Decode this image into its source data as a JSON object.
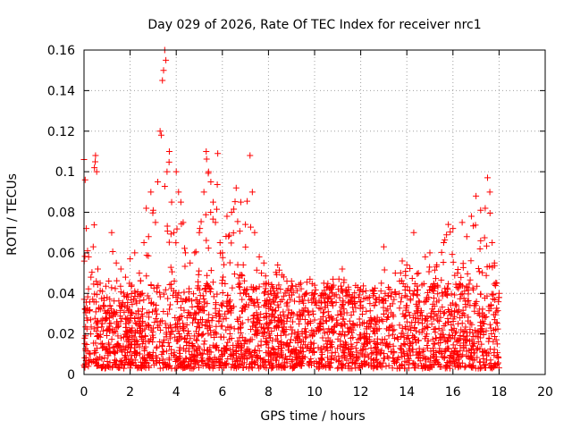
{
  "chart_data": {
    "type": "scatter",
    "title": "Day 029 of 2026, Rate Of TEC Index for receiver nrc1",
    "xlabel": "GPS time / hours",
    "ylabel": "ROTI / TECUs",
    "xlim": [
      0,
      20
    ],
    "ylim": [
      0,
      0.16
    ],
    "xticks": [
      0,
      2,
      4,
      6,
      8,
      10,
      12,
      14,
      16,
      18,
      20
    ],
    "xtick_labels": [
      "0",
      "2",
      "4",
      "6",
      "8",
      "10",
      "12",
      "14",
      "16",
      "18",
      "20"
    ],
    "yticks": [
      0,
      0.02,
      0.04,
      0.06,
      0.08,
      0.1,
      0.12,
      0.14,
      0.16
    ],
    "ytick_labels": [
      "0",
      "0.02",
      "0.04",
      "0.06",
      "0.08",
      "0.1",
      "0.12",
      "0.14",
      "0.16"
    ],
    "grid": true,
    "marker": "plus",
    "series": [
      {
        "name": "ROTI",
        "color": "#ff0000",
        "x_range_hours": [
          0,
          18
        ],
        "typical_band": [
          0.003,
          0.045
        ],
        "x": [
          0.0,
          0.05,
          0.1,
          0.2,
          0.3,
          0.4,
          0.45,
          0.5,
          0.55,
          0.6,
          0.7,
          0.8,
          1.0,
          1.2,
          1.4,
          1.6,
          1.8,
          2.0,
          2.2,
          2.4,
          2.6,
          2.7,
          2.8,
          2.9,
          3.0,
          3.1,
          3.2,
          3.3,
          3.35,
          3.4,
          3.45,
          3.5,
          3.55,
          3.6,
          3.7,
          3.8,
          3.9,
          4.0,
          4.1,
          4.2,
          4.3,
          4.4,
          4.6,
          4.8,
          5.0,
          5.2,
          5.3,
          5.4,
          5.5,
          5.6,
          5.7,
          5.8,
          5.9,
          6.0,
          6.2,
          6.4,
          6.6,
          6.8,
          7.0,
          7.2,
          7.3,
          7.4,
          7.6,
          7.8,
          8.0,
          8.4,
          8.8,
          9.0,
          9.4,
          9.8,
          10.0,
          10.4,
          10.8,
          11.2,
          11.6,
          12.0,
          12.4,
          12.8,
          13.0,
          13.2,
          13.5,
          13.8,
          14.0,
          14.3,
          14.5,
          14.8,
          15.0,
          15.3,
          15.6,
          15.8,
          16.0,
          16.2,
          16.4,
          16.6,
          16.8,
          17.0,
          17.2,
          17.4,
          17.5,
          17.6,
          17.7,
          17.8,
          17.9,
          18.0
        ],
        "y": [
          0.106,
          0.096,
          0.072,
          0.058,
          0.048,
          0.063,
          0.102,
          0.108,
          0.1,
          0.052,
          0.045,
          0.041,
          0.038,
          0.07,
          0.055,
          0.052,
          0.048,
          0.057,
          0.06,
          0.05,
          0.065,
          0.082,
          0.068,
          0.09,
          0.081,
          0.075,
          0.095,
          0.12,
          0.118,
          0.145,
          0.15,
          0.16,
          0.155,
          0.1,
          0.11,
          0.085,
          0.07,
          0.1,
          0.09,
          0.085,
          0.075,
          0.06,
          0.055,
          0.06,
          0.07,
          0.09,
          0.11,
          0.1,
          0.095,
          0.085,
          0.075,
          0.109,
          0.065,
          0.06,
          0.078,
          0.08,
          0.092,
          0.085,
          0.074,
          0.108,
          0.09,
          0.07,
          0.058,
          0.055,
          0.045,
          0.054,
          0.046,
          0.046,
          0.045,
          0.047,
          0.044,
          0.045,
          0.047,
          0.052,
          0.038,
          0.042,
          0.035,
          0.038,
          0.063,
          0.043,
          0.05,
          0.056,
          0.054,
          0.07,
          0.05,
          0.058,
          0.06,
          0.054,
          0.065,
          0.074,
          0.072,
          0.05,
          0.075,
          0.068,
          0.078,
          0.088,
          0.081,
          0.082,
          0.097,
          0.09,
          0.065,
          0.055,
          0.045,
          0.04
        ]
      }
    ]
  }
}
